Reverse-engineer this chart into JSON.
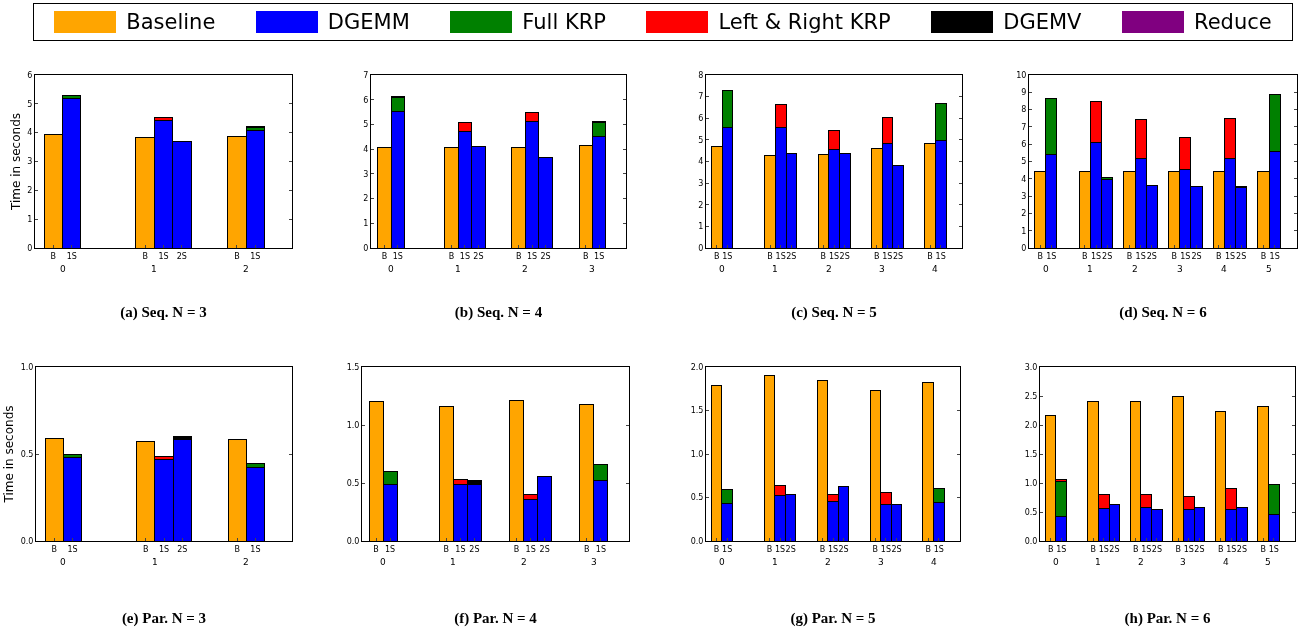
{
  "chart_data": [
    {
      "type": "bar",
      "stacked": true,
      "title": "(a) Seq. N = 3",
      "ylabel": "Time in seconds",
      "legend": "top",
      "ylim": [
        0,
        6
      ],
      "yticks": [
        0,
        1,
        2,
        3,
        4,
        5,
        6
      ],
      "annotations": [
        "0",
        "1",
        "2"
      ],
      "categories": [
        "B",
        "1S",
        null,
        null,
        null,
        "B",
        "1S",
        "2S",
        null,
        null,
        "B",
        "1S",
        null
      ],
      "series": [
        {
          "name": "Baseline",
          "color": "#ffa500",
          "values": [
            3.93,
            null,
            null,
            null,
            null,
            3.82,
            null,
            null,
            null,
            null,
            3.88,
            null,
            null
          ]
        },
        {
          "name": "DGEMM",
          "color": "#0000ff",
          "values": [
            null,
            5.2,
            null,
            null,
            null,
            null,
            4.43,
            3.7,
            null,
            null,
            null,
            4.08,
            null
          ]
        },
        {
          "name": "Full KRP",
          "color": "#008000",
          "values": [
            null,
            0.1,
            null,
            null,
            null,
            null,
            null,
            null,
            null,
            null,
            null,
            0.1,
            null
          ]
        },
        {
          "name": "Left & Right KRP",
          "color": "#ff0000",
          "values": [
            null,
            null,
            null,
            null,
            null,
            null,
            0.1,
            null,
            null,
            null,
            null,
            0.05,
            null
          ]
        },
        {
          "name": "DGEMV",
          "color": "#000000",
          "values": [
            null,
            null,
            null,
            null,
            null,
            null,
            null,
            null,
            null,
            null,
            null,
            null,
            null
          ]
        },
        {
          "name": "Reduce",
          "color": "#800080",
          "values": [
            null,
            null,
            null,
            null,
            null,
            null,
            null,
            null,
            null,
            null,
            null,
            null,
            null
          ]
        }
      ]
    },
    {
      "type": "bar",
      "stacked": true,
      "title": "(b) Seq. N = 4",
      "ylim": [
        0,
        7
      ],
      "yticks": [
        0,
        1,
        2,
        3,
        4,
        5,
        6,
        7
      ],
      "annotations": [
        "0",
        "1",
        "2",
        "3"
      ],
      "categories": [
        "B",
        "1S",
        null,
        null,
        null,
        "B",
        "1S",
        "2S",
        null,
        null,
        "B",
        "1S",
        "2S",
        null,
        null,
        "B",
        "1S",
        null
      ],
      "series": [
        {
          "color": "#ffa500",
          "values": [
            4.05,
            null,
            null,
            null,
            null,
            4.05,
            null,
            null,
            null,
            null,
            4.05,
            null,
            null,
            null,
            null,
            4.15,
            null,
            null
          ]
        },
        {
          "color": "#0000ff",
          "values": [
            null,
            5.52,
            null,
            null,
            null,
            null,
            4.7,
            4.1,
            null,
            null,
            null,
            5.12,
            3.65,
            null,
            null,
            null,
            4.5,
            null
          ]
        },
        {
          "color": "#008000",
          "values": [
            null,
            0.58,
            null,
            null,
            null,
            null,
            null,
            null,
            null,
            null,
            null,
            null,
            null,
            null,
            null,
            null,
            0.58,
            null
          ]
        },
        {
          "color": "#ff0000",
          "values": [
            null,
            0.05,
            null,
            null,
            null,
            null,
            0.38,
            null,
            null,
            null,
            null,
            0.38,
            null,
            null,
            null,
            null,
            0.05,
            null
          ]
        }
      ]
    },
    {
      "type": "bar",
      "stacked": true,
      "title": "(c) Seq. N = 5",
      "ylim": [
        0,
        8
      ],
      "yticks": [
        0,
        1,
        2,
        3,
        4,
        5,
        6,
        7,
        8
      ],
      "annotations": [
        "0",
        "1",
        "2",
        "3",
        "4"
      ],
      "categories": [
        "B",
        "1S",
        null,
        null,
        null,
        "B",
        "1S",
        "2S",
        null,
        null,
        "B",
        "1S",
        "2S",
        null,
        null,
        "B",
        "1S",
        "2S",
        null,
        null,
        "B",
        "1S",
        null
      ],
      "series": [
        {
          "color": "#ffa500",
          "values": [
            4.7,
            null,
            null,
            null,
            null,
            4.3,
            null,
            null,
            null,
            null,
            4.33,
            null,
            null,
            null,
            null,
            4.58,
            null,
            null,
            null,
            null,
            4.85,
            null,
            null
          ]
        },
        {
          "color": "#0000ff",
          "values": [
            null,
            5.55,
            null,
            null,
            null,
            null,
            5.55,
            4.35,
            null,
            null,
            null,
            4.55,
            4.35,
            null,
            null,
            null,
            4.82,
            3.82,
            null,
            null,
            null,
            4.98,
            null
          ]
        },
        {
          "color": "#008000",
          "values": [
            null,
            1.75,
            null,
            null,
            null,
            null,
            null,
            null,
            null,
            null,
            null,
            null,
            null,
            null,
            null,
            null,
            null,
            null,
            null,
            null,
            null,
            1.72,
            null
          ]
        },
        {
          "color": "#ff0000",
          "values": [
            null,
            null,
            null,
            null,
            null,
            null,
            1.07,
            null,
            null,
            null,
            null,
            0.9,
            null,
            null,
            null,
            null,
            1.2,
            null,
            null,
            null,
            null,
            null,
            null
          ]
        }
      ]
    },
    {
      "type": "bar",
      "stacked": true,
      "title": "(d) Seq. N = 6",
      "ylim": [
        0,
        10
      ],
      "yticks": [
        0,
        1,
        2,
        3,
        4,
        5,
        6,
        7,
        8,
        9,
        10
      ],
      "annotations": [
        "0",
        "1",
        "2",
        "3",
        "4",
        "5"
      ],
      "categories": [
        "B",
        "1S",
        null,
        null,
        "B",
        "1S",
        "2S",
        null,
        "B",
        "1S",
        "2S",
        null,
        "B",
        "1S",
        "2S",
        null,
        "B",
        "1S",
        "2S",
        null,
        "B",
        "1S",
        null
      ],
      "series": [
        {
          "color": "#ffa500",
          "values": [
            4.42,
            null,
            null,
            null,
            4.42,
            null,
            null,
            null,
            4.42,
            null,
            null,
            null,
            4.42,
            null,
            null,
            null,
            4.42,
            null,
            null,
            null,
            4.42,
            null,
            null
          ]
        },
        {
          "color": "#0000ff",
          "values": [
            null,
            5.42,
            null,
            null,
            null,
            6.08,
            3.98,
            null,
            null,
            5.15,
            3.6,
            null,
            null,
            4.52,
            3.55,
            null,
            null,
            5.15,
            3.5,
            null,
            null,
            5.6,
            null
          ]
        },
        {
          "color": "#008000",
          "values": [
            null,
            3.23,
            null,
            null,
            null,
            null,
            0.1,
            null,
            null,
            null,
            null,
            null,
            null,
            null,
            null,
            null,
            null,
            null,
            0.05,
            null,
            null,
            3.25,
            null
          ]
        },
        {
          "color": "#ff0000",
          "values": [
            null,
            null,
            null,
            null,
            null,
            2.37,
            null,
            null,
            null,
            2.25,
            null,
            null,
            null,
            1.88,
            null,
            null,
            null,
            2.33,
            null,
            null,
            null,
            null,
            null
          ]
        }
      ]
    },
    {
      "type": "bar",
      "stacked": true,
      "title": "(e) Par. N = 3",
      "ylabel": "Time in seconds",
      "ylim": [
        0,
        1
      ],
      "yticks": [
        {
          "value": 0,
          "label": "0.0"
        },
        {
          "value": 0.5,
          "label": "0.5"
        },
        {
          "value": 1,
          "label": "1.0"
        }
      ],
      "annotations": [
        "0",
        "1",
        "2"
      ],
      "categories": [
        "B",
        "1S",
        null,
        null,
        null,
        "B",
        "1S",
        "2S",
        null,
        null,
        "B",
        "1S",
        null
      ],
      "series": [
        {
          "color": "#ffa500",
          "values": [
            0.59,
            null,
            null,
            null,
            null,
            0.57,
            null,
            null,
            null,
            null,
            0.585,
            null,
            null
          ]
        },
        {
          "color": "#0000ff",
          "values": [
            null,
            0.48,
            null,
            null,
            null,
            null,
            0.47,
            0.585,
            null,
            null,
            null,
            0.425,
            null
          ]
        },
        {
          "color": "#008000",
          "values": [
            null,
            0.02,
            null,
            null,
            null,
            null,
            null,
            null,
            null,
            null,
            null,
            0.02,
            null
          ]
        },
        {
          "color": "#ff0000",
          "values": [
            null,
            null,
            null,
            null,
            null,
            null,
            0.015,
            null,
            null,
            null,
            null,
            null,
            null
          ]
        },
        {
          "color": "#000000",
          "values": [
            null,
            null,
            null,
            null,
            null,
            null,
            null,
            0.015,
            null,
            null,
            null,
            null,
            null
          ]
        }
      ]
    },
    {
      "type": "bar",
      "stacked": true,
      "title": "(f) Par. N = 4",
      "ylim": [
        0,
        1.5
      ],
      "yticks": [
        {
          "value": 0,
          "label": "0.0"
        },
        {
          "value": 0.5,
          "label": "0.5"
        },
        {
          "value": 1,
          "label": "1.0"
        },
        1.5
      ],
      "annotations": [
        "0",
        "1",
        "2",
        "3"
      ],
      "categories": [
        "B",
        "1S",
        null,
        null,
        null,
        "B",
        "1S",
        "2S",
        null,
        null,
        "B",
        "1S",
        "2S",
        null,
        null,
        "B",
        "1S",
        null
      ],
      "series": [
        {
          "color": "#ffa500",
          "values": [
            1.2,
            null,
            null,
            null,
            null,
            1.16,
            null,
            null,
            null,
            null,
            1.21,
            null,
            null,
            null,
            null,
            1.18,
            null,
            null
          ]
        },
        {
          "color": "#0000ff",
          "values": [
            null,
            0.49,
            null,
            null,
            null,
            null,
            0.49,
            0.49,
            null,
            null,
            null,
            0.36,
            0.56,
            null,
            null,
            null,
            0.52,
            null
          ]
        },
        {
          "color": "#008000",
          "values": [
            null,
            0.11,
            null,
            null,
            null,
            null,
            null,
            null,
            null,
            null,
            null,
            null,
            null,
            null,
            null,
            null,
            0.14,
            null
          ]
        },
        {
          "color": "#ff0000",
          "values": [
            null,
            null,
            null,
            null,
            null,
            null,
            0.04,
            null,
            null,
            null,
            null,
            0.04,
            null,
            null,
            null,
            null,
            null,
            null
          ]
        },
        {
          "color": "#000000",
          "values": [
            null,
            null,
            null,
            null,
            null,
            null,
            null,
            0.03,
            null,
            null,
            null,
            null,
            null,
            null,
            null,
            null,
            null,
            null
          ]
        }
      ]
    },
    {
      "type": "bar",
      "stacked": true,
      "title": "(g) Par. N = 5",
      "ylim": [
        0,
        2
      ],
      "yticks": [
        {
          "value": 0,
          "label": "0.0"
        },
        0.5,
        {
          "value": 1,
          "label": "1.0"
        },
        1.5,
        {
          "value": 2,
          "label": "2.0"
        }
      ],
      "annotations": [
        "0",
        "1",
        "2",
        "3",
        "4"
      ],
      "categories": [
        "B",
        "1S",
        null,
        null,
        null,
        "B",
        "1S",
        "2S",
        null,
        null,
        "B",
        "1S",
        "2S",
        null,
        null,
        "B",
        "1S",
        "2S",
        null,
        null,
        "B",
        "1S",
        null
      ],
      "series": [
        {
          "color": "#ffa500",
          "values": [
            1.79,
            null,
            null,
            null,
            null,
            1.9,
            null,
            null,
            null,
            null,
            1.84,
            null,
            null,
            null,
            null,
            1.73,
            null,
            null,
            null,
            null,
            1.82,
            null,
            null
          ]
        },
        {
          "color": "#0000ff",
          "values": [
            null,
            0.43,
            null,
            null,
            null,
            null,
            0.52,
            0.54,
            null,
            null,
            null,
            0.45,
            0.63,
            null,
            null,
            null,
            0.42,
            0.42,
            null,
            null,
            null,
            0.44,
            null
          ]
        },
        {
          "color": "#008000",
          "values": [
            null,
            0.16,
            null,
            null,
            null,
            null,
            null,
            null,
            null,
            null,
            null,
            null,
            null,
            null,
            null,
            null,
            null,
            null,
            null,
            null,
            null,
            0.16,
            null
          ]
        },
        {
          "color": "#ff0000",
          "values": [
            null,
            null,
            null,
            null,
            null,
            null,
            0.12,
            null,
            null,
            null,
            null,
            0.09,
            null,
            null,
            null,
            null,
            0.14,
            null,
            null,
            null,
            null,
            null,
            null
          ]
        }
      ]
    },
    {
      "type": "bar",
      "stacked": true,
      "title": "(h) Par. N = 6",
      "ylim": [
        0,
        3
      ],
      "yticks": [
        {
          "value": 0,
          "label": "0.0"
        },
        0.5,
        {
          "value": 1,
          "label": "1.0"
        },
        1.5,
        {
          "value": 2,
          "label": "2.0"
        },
        2.5,
        {
          "value": 3,
          "label": "3.0"
        }
      ],
      "annotations": [
        "0",
        "1",
        "2",
        "3",
        "4",
        "5"
      ],
      "categories": [
        "B",
        "1S",
        null,
        null,
        "B",
        "1S",
        "2S",
        null,
        "B",
        "1S",
        "2S",
        null,
        "B",
        "1S",
        "2S",
        null,
        "B",
        "1S",
        "2S",
        null,
        "B",
        "1S",
        null
      ],
      "series": [
        {
          "color": "#ffa500",
          "values": [
            2.16,
            null,
            null,
            null,
            2.4,
            null,
            null,
            null,
            2.41,
            null,
            null,
            null,
            2.5,
            null,
            null,
            null,
            2.23,
            null,
            null,
            null,
            2.32,
            null,
            null
          ]
        },
        {
          "color": "#0000ff",
          "values": [
            null,
            0.42,
            null,
            null,
            null,
            0.56,
            0.63,
            null,
            null,
            0.58,
            0.55,
            null,
            null,
            0.54,
            0.58,
            null,
            null,
            0.54,
            0.57,
            null,
            null,
            0.46,
            null
          ]
        },
        {
          "color": "#008000",
          "values": [
            null,
            0.61,
            null,
            null,
            null,
            null,
            null,
            null,
            null,
            null,
            null,
            null,
            null,
            null,
            null,
            null,
            null,
            null,
            null,
            null,
            null,
            0.51,
            null
          ]
        },
        {
          "color": "#ff0000",
          "values": [
            null,
            0.03,
            null,
            null,
            null,
            0.25,
            null,
            null,
            null,
            0.23,
            null,
            null,
            null,
            0.22,
            null,
            null,
            null,
            0.36,
            null,
            null,
            null,
            null,
            null
          ]
        }
      ]
    }
  ]
}
